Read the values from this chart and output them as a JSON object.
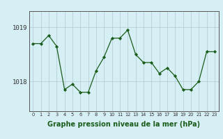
{
  "x": [
    0,
    1,
    2,
    3,
    4,
    5,
    6,
    7,
    8,
    9,
    10,
    11,
    12,
    13,
    14,
    15,
    16,
    17,
    18,
    19,
    20,
    21,
    22,
    23
  ],
  "y": [
    1018.7,
    1018.7,
    1018.85,
    1018.65,
    1017.85,
    1017.95,
    1017.8,
    1017.8,
    1018.2,
    1018.45,
    1018.8,
    1018.8,
    1018.95,
    1018.5,
    1018.35,
    1018.35,
    1018.15,
    1018.25,
    1018.1,
    1017.85,
    1017.85,
    1018.0,
    1018.55,
    1018.55
  ],
  "line_color": "#1a5c1a",
  "marker_color": "#1a5c1a",
  "bg_color": "#d6eff5",
  "grid_color": "#b0c8d0",
  "xlabel": "Graphe pression niveau de la mer (hPa)",
  "ytick_labels": [
    "1018",
    "1019"
  ],
  "ytick_positions": [
    1018.0,
    1019.0
  ],
  "ylim_min": 1017.45,
  "ylim_max": 1019.3,
  "xlim_min": -0.5,
  "xlim_max": 23.5,
  "axis_color": "#555555",
  "xlabel_color": "#1a5c1a",
  "xlabel_fontsize": 7.0,
  "xlabel_fontweight": "bold"
}
